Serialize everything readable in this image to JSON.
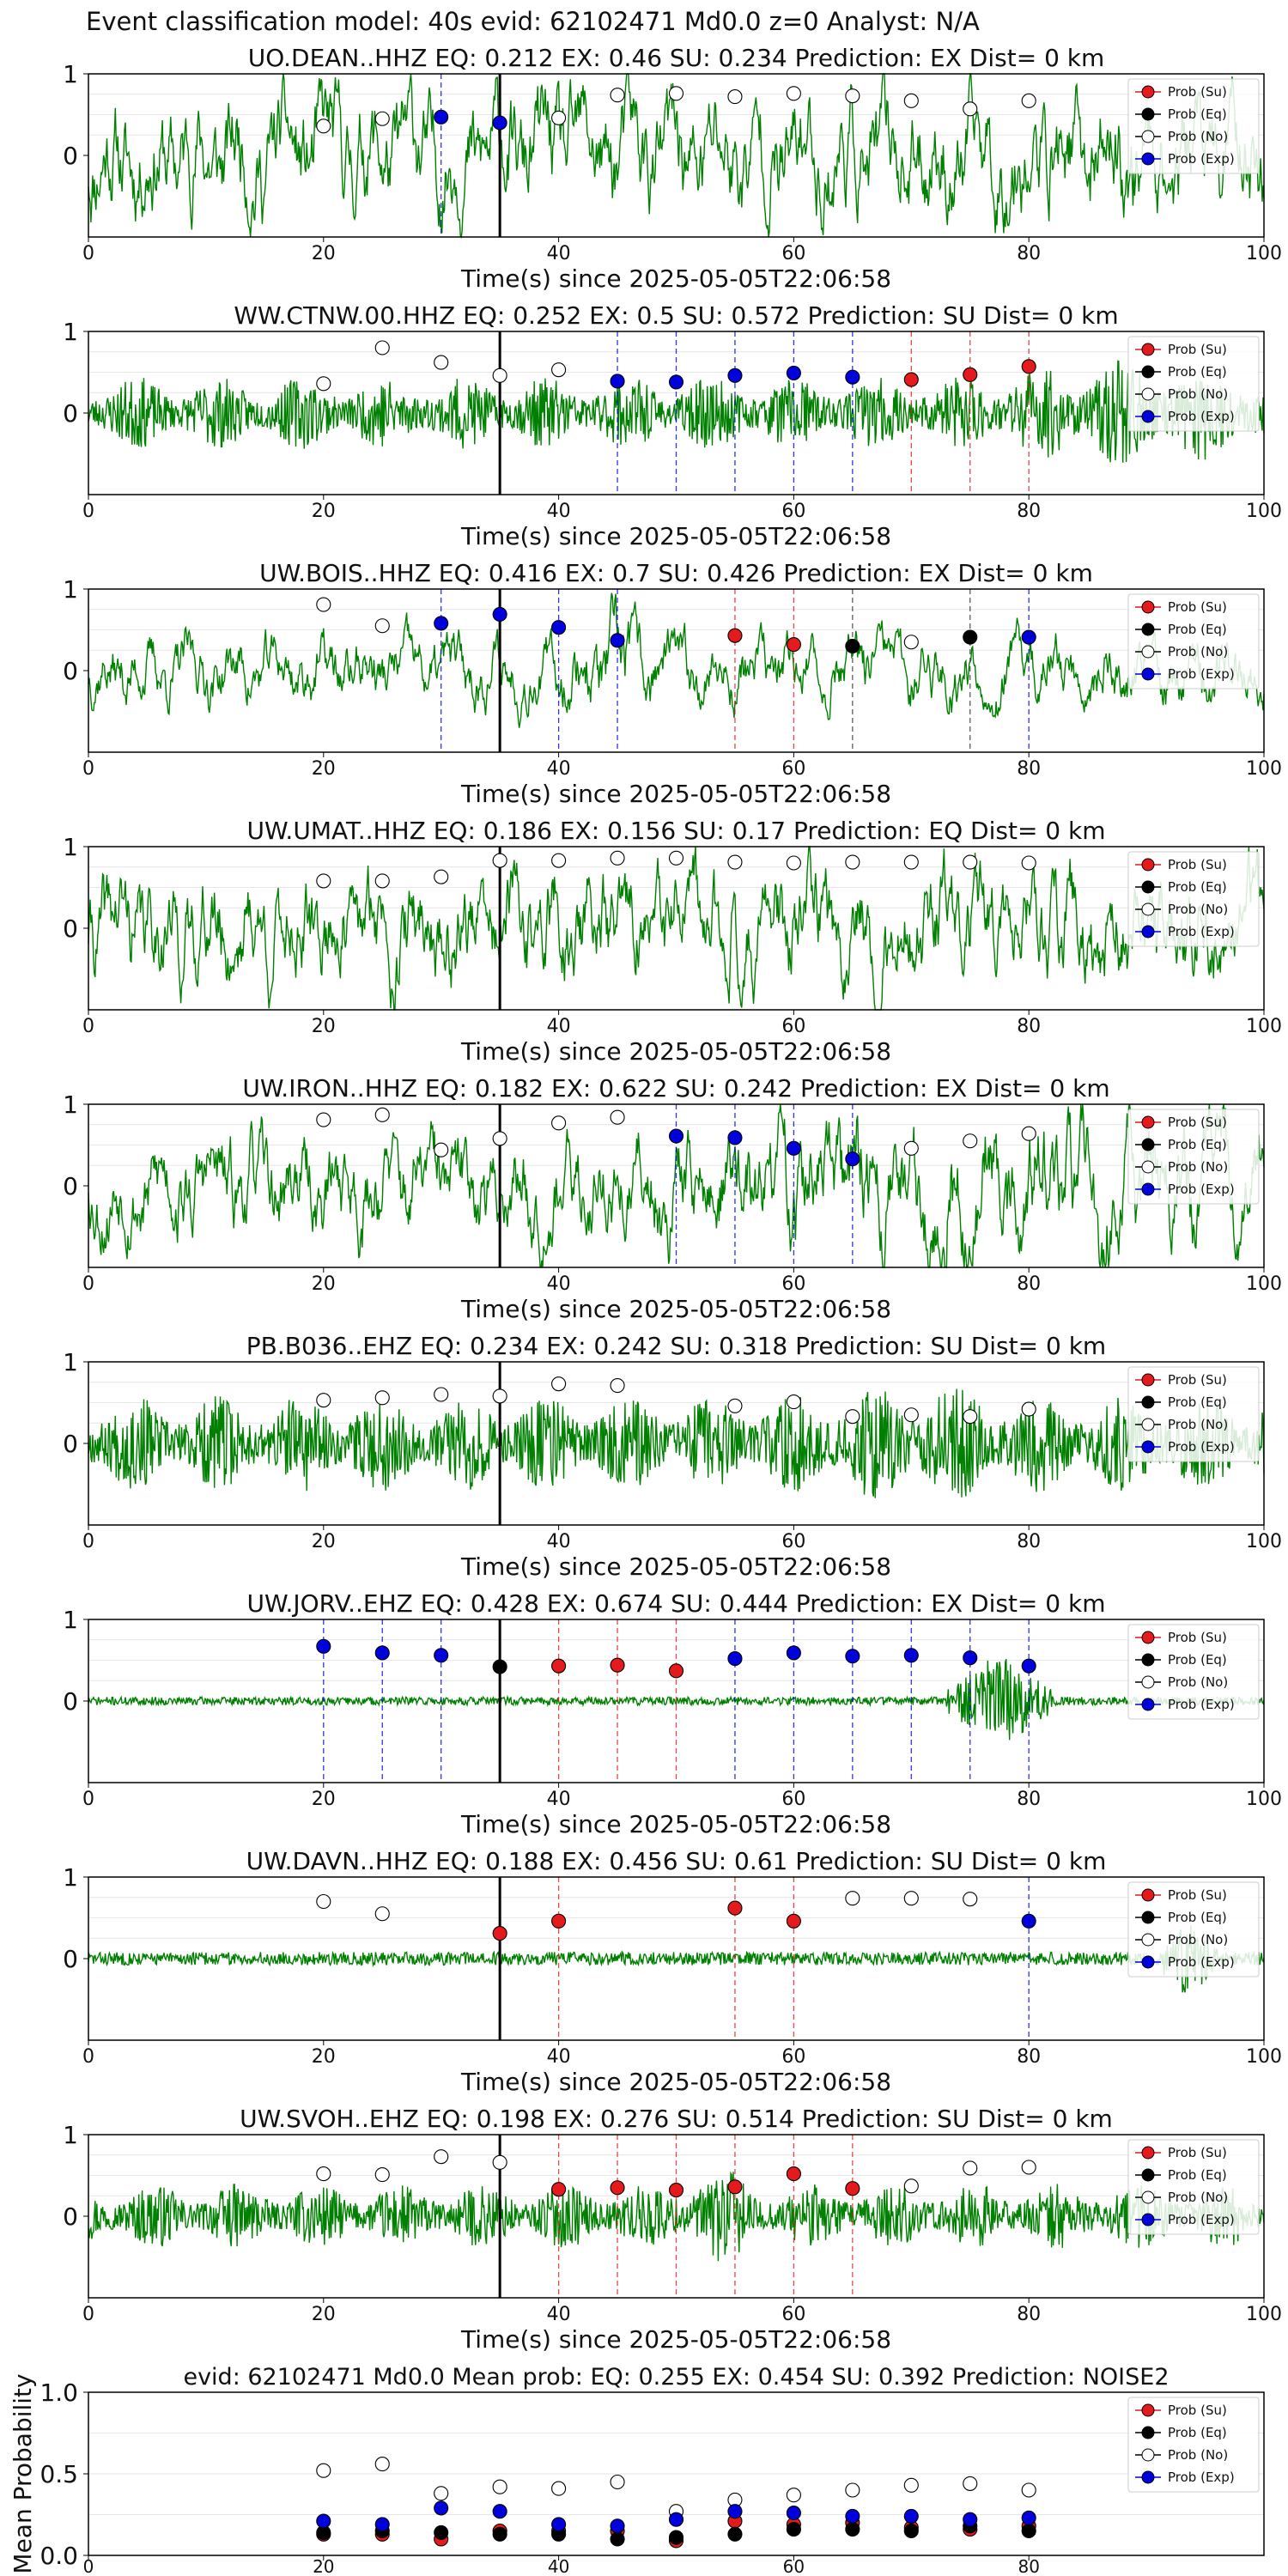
{
  "suptitle": "Event classification model: 40s evid: 62102471 Md0.0 z=0 Analyst: N/A",
  "colors": {
    "waveform": "#008000",
    "su": "#e41a1c",
    "eq": "#000000",
    "no": "#ffffff",
    "exp": "#0000dd",
    "arrival": "#000000"
  },
  "chart_data": [
    {
      "type": "line",
      "title": "UO.DEAN..HHZ   EQ: 0.212  EX: 0.46  SU: 0.234   Prediction: EX    Dist= 0 km",
      "xlabel": "Time(s) since 2025-05-05T22:06:58",
      "xlim": [
        0,
        100
      ],
      "xticks": [
        0,
        20,
        40,
        60,
        80,
        100
      ],
      "yticks": [
        0,
        1
      ],
      "ylim": [
        -1,
        1
      ],
      "arrival_time": 35,
      "legend": [
        "Prob (Su)",
        "Prob (Eq)",
        "Prob (No)",
        "Prob (Exp)"
      ],
      "legend_position": "upper-right",
      "waveform": {
        "style": "low",
        "amp": 0.55,
        "seed": 11
      },
      "points": [
        {
          "x": 20,
          "y": 0.36,
          "cls": "no"
        },
        {
          "x": 25,
          "y": 0.45,
          "cls": "no"
        },
        {
          "x": 30,
          "y": 0.47,
          "cls": "exp"
        },
        {
          "x": 35,
          "y": 0.4,
          "cls": "exp"
        },
        {
          "x": 40,
          "y": 0.46,
          "cls": "no"
        },
        {
          "x": 45,
          "y": 0.74,
          "cls": "no"
        },
        {
          "x": 50,
          "y": 0.76,
          "cls": "no"
        },
        {
          "x": 55,
          "y": 0.72,
          "cls": "no"
        },
        {
          "x": 60,
          "y": 0.76,
          "cls": "no"
        },
        {
          "x": 65,
          "y": 0.73,
          "cls": "no"
        },
        {
          "x": 70,
          "y": 0.67,
          "cls": "no"
        },
        {
          "x": 75,
          "y": 0.57,
          "cls": "no"
        },
        {
          "x": 80,
          "y": 0.67,
          "cls": "no"
        }
      ]
    },
    {
      "type": "line",
      "title": "WW.CTNW.00.HHZ   EQ: 0.252  EX: 0.5  SU: 0.572   Prediction: SU    Dist= 0 km",
      "xlabel": "Time(s) since 2025-05-05T22:06:58",
      "xlim": [
        0,
        100
      ],
      "xticks": [
        0,
        20,
        40,
        60,
        80,
        100
      ],
      "yticks": [
        0,
        1
      ],
      "ylim": [
        -1,
        1
      ],
      "arrival_time": 35,
      "legend": [
        "Prob (Su)",
        "Prob (Eq)",
        "Prob (No)",
        "Prob (Exp)"
      ],
      "legend_position": "upper-right",
      "waveform": {
        "style": "noise",
        "amp": 0.45,
        "seed": 23,
        "burst": [
          74,
          100,
          1.6
        ]
      },
      "points": [
        {
          "x": 20,
          "y": 0.36,
          "cls": "no"
        },
        {
          "x": 25,
          "y": 0.8,
          "cls": "no"
        },
        {
          "x": 30,
          "y": 0.62,
          "cls": "no"
        },
        {
          "x": 35,
          "y": 0.46,
          "cls": "no"
        },
        {
          "x": 40,
          "y": 0.53,
          "cls": "no"
        },
        {
          "x": 45,
          "y": 0.39,
          "cls": "exp"
        },
        {
          "x": 50,
          "y": 0.38,
          "cls": "exp"
        },
        {
          "x": 55,
          "y": 0.46,
          "cls": "exp"
        },
        {
          "x": 60,
          "y": 0.49,
          "cls": "exp"
        },
        {
          "x": 65,
          "y": 0.44,
          "cls": "exp"
        },
        {
          "x": 70,
          "y": 0.41,
          "cls": "su"
        },
        {
          "x": 75,
          "y": 0.47,
          "cls": "su"
        },
        {
          "x": 80,
          "y": 0.57,
          "cls": "su"
        }
      ]
    },
    {
      "type": "line",
      "title": "UW.BOIS..HHZ   EQ: 0.416  EX: 0.7  SU: 0.426   Prediction: EX    Dist= 0 km",
      "xlabel": "Time(s) since 2025-05-05T22:06:58",
      "xlim": [
        0,
        100
      ],
      "xticks": [
        0,
        20,
        40,
        60,
        80,
        100
      ],
      "yticks": [
        0,
        1
      ],
      "ylim": [
        -1,
        1
      ],
      "arrival_time": 35,
      "legend": [
        "Prob (Su)",
        "Prob (Eq)",
        "Prob (No)",
        "Prob (Exp)"
      ],
      "legend_position": "upper-right",
      "waveform": {
        "style": "low",
        "amp": 0.3,
        "seed": 37,
        "burst": [
          41,
          48,
          1.6
        ]
      },
      "points": [
        {
          "x": 20,
          "y": 0.81,
          "cls": "no"
        },
        {
          "x": 25,
          "y": 0.55,
          "cls": "no"
        },
        {
          "x": 30,
          "y": 0.58,
          "cls": "exp"
        },
        {
          "x": 35,
          "y": 0.69,
          "cls": "exp"
        },
        {
          "x": 40,
          "y": 0.53,
          "cls": "exp"
        },
        {
          "x": 45,
          "y": 0.37,
          "cls": "exp"
        },
        {
          "x": 55,
          "y": 0.43,
          "cls": "su"
        },
        {
          "x": 60,
          "y": 0.32,
          "cls": "su"
        },
        {
          "x": 65,
          "y": 0.3,
          "cls": "eq"
        },
        {
          "x": 70,
          "y": 0.35,
          "cls": "no"
        },
        {
          "x": 75,
          "y": 0.41,
          "cls": "eq"
        },
        {
          "x": 80,
          "y": 0.41,
          "cls": "exp"
        }
      ]
    },
    {
      "type": "line",
      "title": "UW.UMAT..HHZ   EQ: 0.186  EX: 0.156  SU: 0.17   Prediction: EQ    Dist= 0 km",
      "xlabel": "Time(s) since 2025-05-05T22:06:58",
      "xlim": [
        0,
        100
      ],
      "xticks": [
        0,
        20,
        40,
        60,
        80,
        100
      ],
      "yticks": [
        0,
        1
      ],
      "ylim": [
        -1,
        1
      ],
      "arrival_time": 35,
      "legend": [
        "Prob (Su)",
        "Prob (Eq)",
        "Prob (No)",
        "Prob (Exp)"
      ],
      "legend_position": "upper-right",
      "waveform": {
        "style": "low",
        "amp": 0.5,
        "seed": 41
      },
      "points": [
        {
          "x": 20,
          "y": 0.58,
          "cls": "no"
        },
        {
          "x": 25,
          "y": 0.58,
          "cls": "no"
        },
        {
          "x": 30,
          "y": 0.63,
          "cls": "no"
        },
        {
          "x": 35,
          "y": 0.83,
          "cls": "no"
        },
        {
          "x": 40,
          "y": 0.83,
          "cls": "no"
        },
        {
          "x": 45,
          "y": 0.86,
          "cls": "no"
        },
        {
          "x": 50,
          "y": 0.86,
          "cls": "no"
        },
        {
          "x": 55,
          "y": 0.81,
          "cls": "no"
        },
        {
          "x": 60,
          "y": 0.8,
          "cls": "no"
        },
        {
          "x": 65,
          "y": 0.81,
          "cls": "no"
        },
        {
          "x": 70,
          "y": 0.81,
          "cls": "no"
        },
        {
          "x": 75,
          "y": 0.81,
          "cls": "no"
        },
        {
          "x": 80,
          "y": 0.8,
          "cls": "no"
        }
      ]
    },
    {
      "type": "line",
      "title": "UW.IRON..HHZ   EQ: 0.182  EX: 0.622  SU: 0.242   Prediction: EX    Dist= 0 km",
      "xlabel": "Time(s) since 2025-05-05T22:06:58",
      "xlim": [
        0,
        100
      ],
      "xticks": [
        0,
        20,
        40,
        60,
        80,
        100
      ],
      "yticks": [
        0,
        1
      ],
      "ylim": [
        -1,
        1
      ],
      "arrival_time": 35,
      "legend": [
        "Prob (Su)",
        "Prob (Eq)",
        "Prob (No)",
        "Prob (Exp)"
      ],
      "legend_position": "upper-right",
      "waveform": {
        "style": "low",
        "amp": 0.45,
        "seed": 53,
        "burst": [
          48,
          100,
          1.5
        ]
      },
      "points": [
        {
          "x": 20,
          "y": 0.81,
          "cls": "no"
        },
        {
          "x": 25,
          "y": 0.87,
          "cls": "no"
        },
        {
          "x": 30,
          "y": 0.44,
          "cls": "no"
        },
        {
          "x": 35,
          "y": 0.58,
          "cls": "no"
        },
        {
          "x": 40,
          "y": 0.77,
          "cls": "no"
        },
        {
          "x": 45,
          "y": 0.84,
          "cls": "no"
        },
        {
          "x": 50,
          "y": 0.61,
          "cls": "exp"
        },
        {
          "x": 55,
          "y": 0.59,
          "cls": "exp"
        },
        {
          "x": 60,
          "y": 0.46,
          "cls": "exp"
        },
        {
          "x": 65,
          "y": 0.33,
          "cls": "exp"
        },
        {
          "x": 70,
          "y": 0.46,
          "cls": "no"
        },
        {
          "x": 75,
          "y": 0.55,
          "cls": "no"
        },
        {
          "x": 80,
          "y": 0.64,
          "cls": "no"
        }
      ]
    },
    {
      "type": "line",
      "title": "PB.B036..EHZ   EQ: 0.234  EX: 0.242  SU: 0.318   Prediction: SU    Dist= 0 km",
      "xlabel": "Time(s) since 2025-05-05T22:06:58",
      "xlim": [
        0,
        100
      ],
      "xticks": [
        0,
        20,
        40,
        60,
        80,
        100
      ],
      "yticks": [
        0,
        1
      ],
      "ylim": [
        -1,
        1
      ],
      "arrival_time": 35,
      "legend": [
        "Prob (Su)",
        "Prob (Eq)",
        "Prob (No)",
        "Prob (Exp)"
      ],
      "legend_position": "upper-right",
      "waveform": {
        "style": "noise",
        "amp": 0.6,
        "seed": 67,
        "burst": [
          62,
          80,
          1.35
        ]
      },
      "points": [
        {
          "x": 20,
          "y": 0.53,
          "cls": "no"
        },
        {
          "x": 25,
          "y": 0.56,
          "cls": "no"
        },
        {
          "x": 30,
          "y": 0.6,
          "cls": "no"
        },
        {
          "x": 35,
          "y": 0.58,
          "cls": "no"
        },
        {
          "x": 40,
          "y": 0.73,
          "cls": "no"
        },
        {
          "x": 45,
          "y": 0.71,
          "cls": "no"
        },
        {
          "x": 55,
          "y": 0.46,
          "cls": "no"
        },
        {
          "x": 60,
          "y": 0.51,
          "cls": "no"
        },
        {
          "x": 65,
          "y": 0.33,
          "cls": "no"
        },
        {
          "x": 70,
          "y": 0.35,
          "cls": "no"
        },
        {
          "x": 75,
          "y": 0.33,
          "cls": "no"
        },
        {
          "x": 80,
          "y": 0.42,
          "cls": "no"
        }
      ]
    },
    {
      "type": "line",
      "title": "UW.JORV..EHZ   EQ: 0.428  EX: 0.674  SU: 0.444   Prediction: EX    Dist= 0 km",
      "xlabel": "Time(s) since 2025-05-05T22:06:58",
      "xlim": [
        0,
        100
      ],
      "xticks": [
        0,
        20,
        40,
        60,
        80,
        100
      ],
      "yticks": [
        0,
        1
      ],
      "ylim": [
        -1,
        1
      ],
      "arrival_time": 35,
      "legend": [
        "Prob (Su)",
        "Prob (Eq)",
        "Prob (No)",
        "Prob (Exp)"
      ],
      "legend_position": "upper-right",
      "waveform": {
        "style": "quiet",
        "amp": 0.05,
        "seed": 71,
        "burst": [
          73,
          82,
          12
        ]
      },
      "points": [
        {
          "x": 20,
          "y": 0.67,
          "cls": "exp"
        },
        {
          "x": 25,
          "y": 0.59,
          "cls": "exp"
        },
        {
          "x": 30,
          "y": 0.56,
          "cls": "exp"
        },
        {
          "x": 35,
          "y": 0.42,
          "cls": "eq"
        },
        {
          "x": 40,
          "y": 0.43,
          "cls": "su"
        },
        {
          "x": 45,
          "y": 0.44,
          "cls": "su"
        },
        {
          "x": 50,
          "y": 0.37,
          "cls": "su"
        },
        {
          "x": 55,
          "y": 0.52,
          "cls": "exp"
        },
        {
          "x": 60,
          "y": 0.59,
          "cls": "exp"
        },
        {
          "x": 65,
          "y": 0.55,
          "cls": "exp"
        },
        {
          "x": 70,
          "y": 0.56,
          "cls": "exp"
        },
        {
          "x": 75,
          "y": 0.53,
          "cls": "exp"
        },
        {
          "x": 80,
          "y": 0.43,
          "cls": "exp"
        }
      ]
    },
    {
      "type": "line",
      "title": "UW.DAVN..HHZ   EQ: 0.188  EX: 0.456  SU: 0.61   Prediction: SU    Dist= 0 km",
      "xlabel": "Time(s) since 2025-05-05T22:06:58",
      "xlim": [
        0,
        100
      ],
      "xticks": [
        0,
        20,
        40,
        60,
        80,
        100
      ],
      "yticks": [
        0,
        1
      ],
      "ylim": [
        -1,
        1
      ],
      "arrival_time": 35,
      "legend": [
        "Prob (Su)",
        "Prob (Eq)",
        "Prob (No)",
        "Prob (Exp)"
      ],
      "legend_position": "upper-right",
      "waveform": {
        "style": "quiet",
        "amp": 0.08,
        "seed": 83,
        "burst": [
          91,
          96,
          6
        ]
      },
      "points": [
        {
          "x": 20,
          "y": 0.7,
          "cls": "no"
        },
        {
          "x": 25,
          "y": 0.55,
          "cls": "no"
        },
        {
          "x": 35,
          "y": 0.31,
          "cls": "su"
        },
        {
          "x": 40,
          "y": 0.46,
          "cls": "su"
        },
        {
          "x": 55,
          "y": 0.62,
          "cls": "su"
        },
        {
          "x": 60,
          "y": 0.46,
          "cls": "su"
        },
        {
          "x": 65,
          "y": 0.74,
          "cls": "no"
        },
        {
          "x": 70,
          "y": 0.74,
          "cls": "no"
        },
        {
          "x": 75,
          "y": 0.73,
          "cls": "no"
        },
        {
          "x": 80,
          "y": 0.46,
          "cls": "exp"
        }
      ]
    },
    {
      "type": "line",
      "title": "UW.SVOH..EHZ   EQ: 0.198  EX: 0.276  SU: 0.514   Prediction: SU    Dist= 0 km",
      "xlabel": "Time(s) since 2025-05-05T22:06:58",
      "xlim": [
        0,
        100
      ],
      "xticks": [
        0,
        20,
        40,
        60,
        80,
        100
      ],
      "yticks": [
        0,
        1
      ],
      "ylim": [
        -1,
        1
      ],
      "arrival_time": 35,
      "legend": [
        "Prob (Su)",
        "Prob (Eq)",
        "Prob (No)",
        "Prob (Exp)"
      ],
      "legend_position": "upper-right",
      "waveform": {
        "style": "noise",
        "amp": 0.4,
        "seed": 97,
        "burst": [
          50,
          56,
          1.8
        ]
      },
      "points": [
        {
          "x": 20,
          "y": 0.52,
          "cls": "no"
        },
        {
          "x": 25,
          "y": 0.51,
          "cls": "no"
        },
        {
          "x": 30,
          "y": 0.73,
          "cls": "no"
        },
        {
          "x": 35,
          "y": 0.66,
          "cls": "no"
        },
        {
          "x": 40,
          "y": 0.33,
          "cls": "su"
        },
        {
          "x": 45,
          "y": 0.35,
          "cls": "su"
        },
        {
          "x": 50,
          "y": 0.32,
          "cls": "su"
        },
        {
          "x": 55,
          "y": 0.36,
          "cls": "su"
        },
        {
          "x": 60,
          "y": 0.52,
          "cls": "su"
        },
        {
          "x": 65,
          "y": 0.34,
          "cls": "su"
        },
        {
          "x": 70,
          "y": 0.37,
          "cls": "no"
        },
        {
          "x": 75,
          "y": 0.59,
          "cls": "no"
        },
        {
          "x": 80,
          "y": 0.6,
          "cls": "no"
        }
      ]
    },
    {
      "type": "scatter",
      "title": "evid: 62102471  Md0.0   Mean prob:    EQ: 0.255  EX: 0.454  SU: 0.392   Prediction: NOISE2",
      "ylabel": "Mean Probability",
      "xlim": [
        0,
        100
      ],
      "xticks": [
        0,
        20,
        40,
        60,
        80
      ],
      "ylim": [
        0,
        1
      ],
      "yticks": [
        "0.0",
        "0.5",
        "1.0"
      ],
      "grid": true,
      "legend": [
        "Prob (Su)",
        "Prob (Eq)",
        "Prob (No)",
        "Prob (Exp)"
      ],
      "legend_position": "upper-right",
      "x": [
        20,
        25,
        30,
        35,
        40,
        45,
        50,
        55,
        60,
        65,
        70,
        75,
        80
      ],
      "series": [
        {
          "cls": "su",
          "values": [
            0.13,
            0.13,
            0.1,
            0.15,
            0.15,
            0.15,
            0.09,
            0.21,
            0.19,
            0.2,
            0.17,
            0.16,
            0.18
          ]
        },
        {
          "cls": "eq",
          "values": [
            0.14,
            0.15,
            0.14,
            0.13,
            0.13,
            0.1,
            0.11,
            0.13,
            0.16,
            0.16,
            0.15,
            0.18,
            0.15
          ]
        },
        {
          "cls": "no",
          "values": [
            0.52,
            0.56,
            0.38,
            0.42,
            0.41,
            0.45,
            0.27,
            0.34,
            0.37,
            0.4,
            0.43,
            0.44,
            0.4
          ]
        },
        {
          "cls": "exp",
          "values": [
            0.21,
            0.19,
            0.29,
            0.27,
            0.19,
            0.18,
            0.22,
            0.27,
            0.26,
            0.24,
            0.24,
            0.22,
            0.23
          ]
        }
      ]
    }
  ]
}
